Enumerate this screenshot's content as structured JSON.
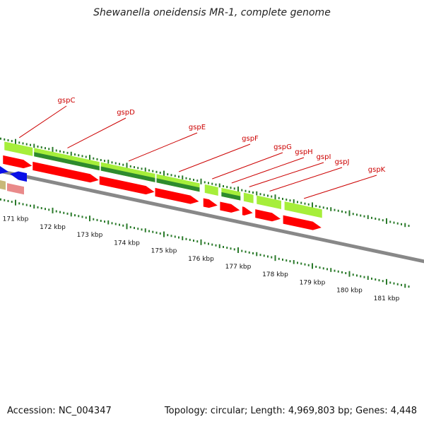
{
  "title": "Shewanella oneidensis MR-1, complete genome",
  "accession": "Accession: NC_004347",
  "stats": "Topology: circular; Length: 4,969,803 bp; Genes: 4,448",
  "colors": {
    "backbone": "#888888",
    "cds": "#ff0000",
    "cds_faded": "#e98a8a",
    "gene_light": "#a6ee3a",
    "gene_dark": "#2e8b2e",
    "blue": "#0a10e6",
    "tan": "#c8b878",
    "label": "#cc0000",
    "tick": "#2a7a2a"
  },
  "genes": [
    {
      "name": "gspC",
      "start": 170.7,
      "end": 171.5
    },
    {
      "name": "gspD",
      "start": 171.5,
      "end": 173.3
    },
    {
      "name": "gspE",
      "start": 173.3,
      "end": 174.8
    },
    {
      "name": "gspF",
      "start": 174.8,
      "end": 176.0
    },
    {
      "name": "gspG",
      "start": 176.1,
      "end": 176.5
    },
    {
      "name": "gspH",
      "start": 176.55,
      "end": 177.1
    },
    {
      "name": "gspI",
      "start": 177.15,
      "end": 177.45
    },
    {
      "name": "gspJ",
      "start": 177.5,
      "end": 178.2
    },
    {
      "name": "gspK",
      "start": 178.25,
      "end": 179.3
    }
  ],
  "scale_labels": [
    "171 kbp",
    "172 kbp",
    "173 kbp",
    "174 kbp",
    "175 kbp",
    "176 kbp",
    "177 kbp",
    "178 kbp",
    "179 kbp",
    "180 kbp",
    "181 kbp"
  ]
}
